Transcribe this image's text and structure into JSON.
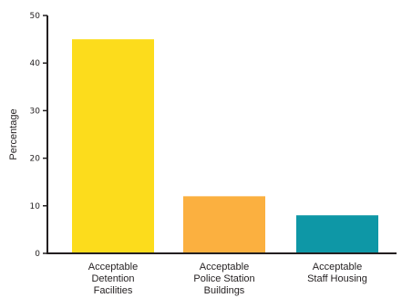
{
  "chart_data": {
    "type": "bar",
    "ylabel": "Percentage",
    "xlabel": "",
    "ylim": [
      0,
      50
    ],
    "yticks": [
      0,
      10,
      20,
      30,
      40,
      50
    ],
    "grid": false,
    "categories": [
      [
        "Acceptable",
        "Detention",
        "Facilities"
      ],
      [
        "Acceptable",
        "Police Station",
        "Buildings"
      ],
      [
        "Acceptable",
        "Staff Housing"
      ]
    ],
    "values": [
      45,
      12,
      8
    ],
    "colors": [
      "#fcdc1c",
      "#fbb040",
      "#0e97a6"
    ]
  }
}
